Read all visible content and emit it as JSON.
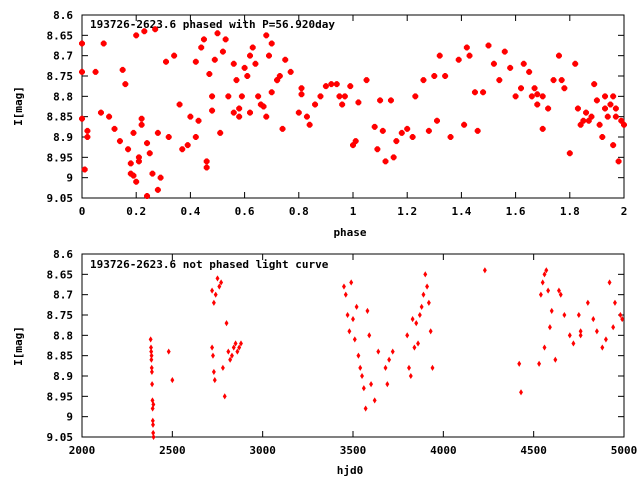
{
  "colors": {
    "points": "#ff0000",
    "axes": "#000000",
    "background": "#ffffff"
  },
  "chart_data": [
    {
      "type": "scatter",
      "title": "193726-2623.6 phased with P=56.920day",
      "xlabel": "phase",
      "ylabel": "I[mag]",
      "xlim": [
        0,
        2
      ],
      "ylim": [
        8.6,
        9.05
      ],
      "y_inverted": true,
      "grid": false,
      "marker": "star",
      "xticks": [
        "0",
        "0.2",
        "0.4",
        "0.6",
        "0.8",
        "1",
        "1.2",
        "1.4",
        "1.6",
        "1.8",
        "2"
      ],
      "yticks": [
        "8.6",
        "8.65",
        "8.7",
        "8.75",
        "8.8",
        "8.85",
        "8.9",
        "8.95",
        "9",
        "9.05"
      ],
      "points": [
        [
          0.0,
          8.67
        ],
        [
          0.0,
          8.74
        ],
        [
          0.0,
          8.855
        ],
        [
          0.01,
          8.98
        ],
        [
          0.02,
          8.9
        ],
        [
          0.02,
          8.885
        ],
        [
          0.05,
          8.74
        ],
        [
          0.07,
          8.84
        ],
        [
          0.08,
          8.67
        ],
        [
          0.1,
          8.85
        ],
        [
          0.12,
          8.88
        ],
        [
          0.14,
          8.91
        ],
        [
          0.15,
          8.735
        ],
        [
          0.16,
          8.77
        ],
        [
          0.17,
          8.93
        ],
        [
          0.18,
          8.99
        ],
        [
          0.18,
          8.965
        ],
        [
          0.19,
          8.89
        ],
        [
          0.19,
          8.995
        ],
        [
          0.2,
          8.65
        ],
        [
          0.2,
          9.01
        ],
        [
          0.21,
          8.95
        ],
        [
          0.21,
          8.96
        ],
        [
          0.22,
          8.87
        ],
        [
          0.22,
          8.855
        ],
        [
          0.23,
          8.64
        ],
        [
          0.24,
          8.915
        ],
        [
          0.24,
          9.045
        ],
        [
          0.25,
          8.94
        ],
        [
          0.26,
          8.99
        ],
        [
          0.27,
          8.635
        ],
        [
          0.28,
          8.89
        ],
        [
          0.28,
          9.03
        ],
        [
          0.29,
          9.0
        ],
        [
          0.31,
          8.715
        ],
        [
          0.32,
          8.9
        ],
        [
          0.34,
          8.7
        ],
        [
          0.36,
          8.82
        ],
        [
          0.37,
          8.93
        ],
        [
          0.39,
          8.92
        ],
        [
          0.4,
          8.85
        ],
        [
          0.42,
          8.9
        ],
        [
          0.42,
          8.715
        ],
        [
          0.43,
          8.86
        ],
        [
          0.44,
          8.68
        ],
        [
          0.45,
          8.66
        ],
        [
          0.46,
          8.96
        ],
        [
          0.46,
          8.975
        ],
        [
          0.47,
          8.745
        ],
        [
          0.48,
          8.8
        ],
        [
          0.48,
          8.835
        ],
        [
          0.49,
          8.71
        ],
        [
          0.5,
          8.645
        ],
        [
          0.51,
          8.89
        ],
        [
          0.52,
          8.69
        ],
        [
          0.53,
          8.66
        ],
        [
          0.54,
          8.8
        ],
        [
          0.56,
          8.72
        ],
        [
          0.56,
          8.84
        ],
        [
          0.57,
          8.76
        ],
        [
          0.58,
          8.85
        ],
        [
          0.58,
          8.83
        ],
        [
          0.59,
          8.8
        ],
        [
          0.6,
          8.73
        ],
        [
          0.61,
          8.75
        ],
        [
          0.62,
          8.7
        ],
        [
          0.62,
          8.84
        ],
        [
          0.63,
          8.68
        ],
        [
          0.64,
          8.72
        ],
        [
          0.65,
          8.8
        ],
        [
          0.66,
          8.82
        ],
        [
          0.67,
          8.825
        ],
        [
          0.68,
          8.65
        ],
        [
          0.68,
          8.85
        ],
        [
          0.69,
          8.7
        ],
        [
          0.7,
          8.67
        ],
        [
          0.7,
          8.79
        ],
        [
          0.72,
          8.76
        ],
        [
          0.72,
          8.76
        ],
        [
          0.73,
          8.75
        ],
        [
          0.74,
          8.88
        ],
        [
          0.75,
          8.71
        ],
        [
          0.77,
          8.74
        ],
        [
          0.8,
          8.84
        ],
        [
          0.81,
          8.78
        ],
        [
          0.81,
          8.795
        ],
        [
          0.83,
          8.85
        ],
        [
          0.84,
          8.87
        ],
        [
          0.86,
          8.82
        ],
        [
          0.88,
          8.8
        ],
        [
          0.9,
          8.775
        ],
        [
          0.92,
          8.77
        ],
        [
          0.94,
          8.77
        ],
        [
          0.95,
          8.8
        ],
        [
          0.96,
          8.82
        ],
        [
          0.97,
          8.8
        ],
        [
          0.99,
          8.775
        ],
        [
          1.0,
          8.92
        ],
        [
          1.01,
          8.91
        ],
        [
          1.02,
          8.815
        ],
        [
          1.05,
          8.76
        ],
        [
          1.08,
          8.875
        ],
        [
          1.09,
          8.93
        ],
        [
          1.1,
          8.81
        ],
        [
          1.11,
          8.885
        ],
        [
          1.12,
          8.96
        ],
        [
          1.14,
          8.81
        ],
        [
          1.15,
          8.95
        ],
        [
          1.16,
          8.91
        ],
        [
          1.18,
          8.89
        ],
        [
          1.2,
          8.88
        ],
        [
          1.22,
          8.9
        ],
        [
          1.23,
          8.8
        ],
        [
          1.26,
          8.76
        ],
        [
          1.28,
          8.885
        ],
        [
          1.3,
          8.75
        ],
        [
          1.31,
          8.86
        ],
        [
          1.32,
          8.7
        ],
        [
          1.34,
          8.75
        ],
        [
          1.36,
          8.9
        ],
        [
          1.39,
          8.71
        ],
        [
          1.41,
          8.87
        ],
        [
          1.42,
          8.68
        ],
        [
          1.43,
          8.7
        ],
        [
          1.45,
          8.79
        ],
        [
          1.46,
          8.885
        ],
        [
          1.48,
          8.79
        ],
        [
          1.5,
          8.675
        ],
        [
          1.52,
          8.72
        ],
        [
          1.54,
          8.76
        ],
        [
          1.56,
          8.69
        ],
        [
          1.58,
          8.73
        ],
        [
          1.6,
          8.8
        ],
        [
          1.62,
          8.78
        ],
        [
          1.63,
          8.72
        ],
        [
          1.65,
          8.74
        ],
        [
          1.66,
          8.8
        ],
        [
          1.67,
          8.78
        ],
        [
          1.68,
          8.82
        ],
        [
          1.68,
          8.795
        ],
        [
          1.7,
          8.8
        ],
        [
          1.7,
          8.88
        ],
        [
          1.72,
          8.83
        ],
        [
          1.74,
          8.76
        ],
        [
          1.76,
          8.7
        ],
        [
          1.77,
          8.76
        ],
        [
          1.78,
          8.78
        ],
        [
          1.8,
          8.94
        ],
        [
          1.82,
          8.72
        ],
        [
          1.83,
          8.83
        ],
        [
          1.84,
          8.87
        ],
        [
          1.85,
          8.86
        ],
        [
          1.86,
          8.84
        ],
        [
          1.87,
          8.86
        ],
        [
          1.88,
          8.85
        ],
        [
          1.9,
          8.81
        ],
        [
          1.91,
          8.87
        ],
        [
          1.92,
          8.9
        ],
        [
          1.93,
          8.83
        ],
        [
          1.94,
          8.85
        ],
        [
          1.95,
          8.82
        ],
        [
          1.96,
          8.92
        ],
        [
          1.97,
          8.85
        ],
        [
          1.98,
          8.96
        ],
        [
          1.99,
          8.86
        ],
        [
          2.0,
          8.87
        ],
        [
          1.89,
          8.77
        ],
        [
          1.93,
          8.8
        ],
        [
          1.96,
          8.8
        ],
        [
          1.97,
          8.83
        ]
      ]
    },
    {
      "type": "scatter",
      "title": "193726-2623.6 not phased light curve",
      "xlabel": "hjd0",
      "ylabel": "I[mag]",
      "xlim": [
        2000,
        5000
      ],
      "ylim": [
        8.6,
        9.05
      ],
      "y_inverted": true,
      "grid": false,
      "marker": "dot",
      "xticks": [
        "2000",
        "2500",
        "3000",
        "3500",
        "4000",
        "4500",
        "5000"
      ],
      "yticks": [
        "8.6",
        "8.65",
        "8.7",
        "8.75",
        "8.8",
        "8.85",
        "8.9",
        "8.95",
        "9",
        "9.05"
      ],
      "points": [
        [
          2380,
          8.81
        ],
        [
          2382,
          8.83
        ],
        [
          2383,
          8.84
        ],
        [
          2384,
          8.86
        ],
        [
          2385,
          8.85
        ],
        [
          2386,
          8.88
        ],
        [
          2387,
          8.89
        ],
        [
          2388,
          8.92
        ],
        [
          2390,
          8.96
        ],
        [
          2391,
          8.98
        ],
        [
          2392,
          9.01
        ],
        [
          2393,
          9.02
        ],
        [
          2394,
          9.04
        ],
        [
          2395,
          8.97
        ],
        [
          2396,
          9.05
        ],
        [
          2480,
          8.84
        ],
        [
          2500,
          8.91
        ],
        [
          2720,
          8.69
        ],
        [
          2730,
          8.72
        ],
        [
          2740,
          8.7
        ],
        [
          2750,
          8.66
        ],
        [
          2760,
          8.68
        ],
        [
          2770,
          8.67
        ],
        [
          2720,
          8.83
        ],
        [
          2725,
          8.85
        ],
        [
          2730,
          8.89
        ],
        [
          2735,
          8.91
        ],
        [
          2780,
          8.88
        ],
        [
          2790,
          8.95
        ],
        [
          2800,
          8.77
        ],
        [
          2810,
          8.84
        ],
        [
          2820,
          8.86
        ],
        [
          2830,
          8.85
        ],
        [
          2840,
          8.83
        ],
        [
          2850,
          8.82
        ],
        [
          2860,
          8.84
        ],
        [
          2870,
          8.83
        ],
        [
          2880,
          8.82
        ],
        [
          3450,
          8.68
        ],
        [
          3460,
          8.7
        ],
        [
          3470,
          8.75
        ],
        [
          3480,
          8.79
        ],
        [
          3490,
          8.67
        ],
        [
          3500,
          8.76
        ],
        [
          3510,
          8.81
        ],
        [
          3520,
          8.73
        ],
        [
          3530,
          8.85
        ],
        [
          3540,
          8.88
        ],
        [
          3550,
          8.9
        ],
        [
          3560,
          8.93
        ],
        [
          3570,
          8.98
        ],
        [
          3580,
          8.74
        ],
        [
          3590,
          8.8
        ],
        [
          3600,
          8.92
        ],
        [
          3620,
          8.96
        ],
        [
          3640,
          8.84
        ],
        [
          3680,
          8.88
        ],
        [
          3690,
          8.92
        ],
        [
          3700,
          8.86
        ],
        [
          3720,
          8.84
        ],
        [
          3800,
          8.8
        ],
        [
          3810,
          8.88
        ],
        [
          3820,
          8.9
        ],
        [
          3830,
          8.76
        ],
        [
          3840,
          8.83
        ],
        [
          3850,
          8.77
        ],
        [
          3860,
          8.82
        ],
        [
          3870,
          8.75
        ],
        [
          3880,
          8.73
        ],
        [
          3890,
          8.7
        ],
        [
          3900,
          8.65
        ],
        [
          3910,
          8.68
        ],
        [
          3920,
          8.72
        ],
        [
          3930,
          8.79
        ],
        [
          3940,
          8.88
        ],
        [
          4230,
          8.64
        ],
        [
          4420,
          8.87
        ],
        [
          4430,
          8.94
        ],
        [
          4540,
          8.7
        ],
        [
          4550,
          8.67
        ],
        [
          4560,
          8.65
        ],
        [
          4570,
          8.64
        ],
        [
          4580,
          8.69
        ],
        [
          4590,
          8.78
        ],
        [
          4600,
          8.74
        ],
        [
          4620,
          8.86
        ],
        [
          4650,
          8.7
        ],
        [
          4700,
          8.8
        ],
        [
          4720,
          8.82
        ],
        [
          4750,
          8.75
        ],
        [
          4800,
          8.72
        ],
        [
          4830,
          8.76
        ],
        [
          4880,
          8.83
        ],
        [
          4900,
          8.81
        ],
        [
          4920,
          8.67
        ],
        [
          4940,
          8.78
        ],
        [
          4950,
          8.72
        ],
        [
          4980,
          8.75
        ],
        [
          4990,
          8.76
        ],
        [
          4530,
          8.87
        ],
        [
          4560,
          8.83
        ],
        [
          4760,
          8.8
        ],
        [
          4760,
          8.79
        ],
        [
          4850,
          8.79
        ],
        [
          4640,
          8.69
        ],
        [
          4670,
          8.75
        ]
      ]
    }
  ]
}
